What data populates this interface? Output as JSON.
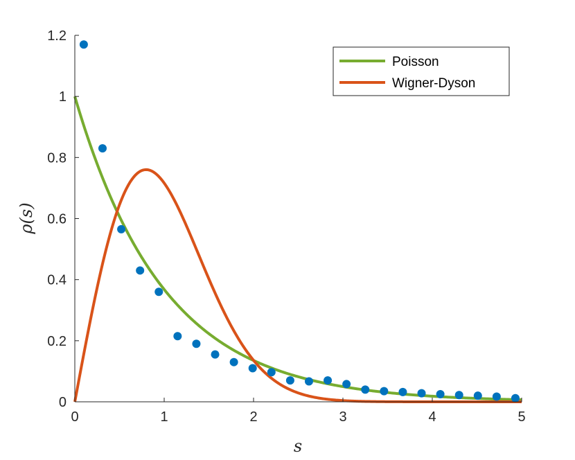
{
  "chart_data": {
    "type": "line",
    "title": "",
    "xlabel": "s",
    "ylabel": "ρ(s)",
    "xlim": [
      0,
      5
    ],
    "ylim": [
      0,
      1.2
    ],
    "xticks": [
      0,
      1,
      2,
      3,
      4,
      5
    ],
    "xtick_labels": [
      "0",
      "1",
      "2",
      "3",
      "4",
      "5"
    ],
    "yticks": [
      0,
      0.2,
      0.4,
      0.6,
      0.8,
      1.0,
      1.2
    ],
    "ytick_labels": [
      "0",
      "0.2",
      "0.4",
      "0.6",
      "0.8",
      "1",
      "1.2"
    ],
    "grid": false,
    "legend_position": "top-right",
    "series": [
      {
        "name": "Poisson",
        "kind": "line",
        "formula": "exp(-s)",
        "color": "#77AC30"
      },
      {
        "name": "Wigner-Dyson",
        "kind": "line",
        "formula": "(pi/2) s exp(-pi s^2 / 4)",
        "color": "#D95319"
      },
      {
        "kind": "scatter",
        "color": "#0072BD",
        "x": [
          0.1,
          0.31,
          0.52,
          0.73,
          0.94,
          1.15,
          1.36,
          1.57,
          1.78,
          1.99,
          2.2,
          2.41,
          2.62,
          2.83,
          3.04,
          3.25,
          3.46,
          3.67,
          3.88,
          4.09,
          4.3,
          4.51,
          4.72,
          4.93
        ],
        "y": [
          1.17,
          0.83,
          0.565,
          0.43,
          0.36,
          0.215,
          0.19,
          0.155,
          0.13,
          0.11,
          0.097,
          0.07,
          0.067,
          0.07,
          0.058,
          0.04,
          0.035,
          0.032,
          0.028,
          0.025,
          0.022,
          0.02,
          0.017,
          0.012
        ]
      }
    ]
  }
}
